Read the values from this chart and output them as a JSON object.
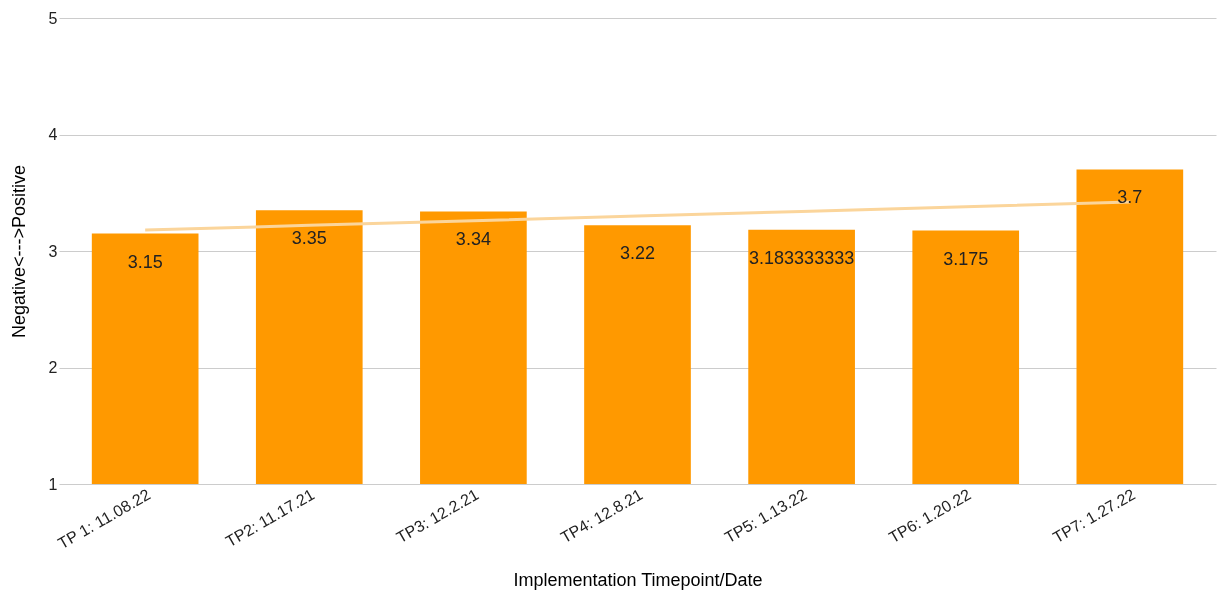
{
  "chart_data": {
    "type": "bar",
    "xlabel": "Implementation Timepoint/Date",
    "ylabel": "Negative<--->Positive",
    "categories": [
      "TP 1: 11.08.22",
      "TP2: 11.17.21",
      "TP3: 12.2.21",
      "TP4: 12.8.21",
      "TP5: 1.13.22",
      "TP6: 1.20.22",
      "TP7: 1.27.22"
    ],
    "series": [
      {
        "color": "#ff9900",
        "values": [
          3.15,
          3.35,
          3.34,
          3.22,
          3.183333333,
          3.175,
          3.7
        ],
        "value_labels": [
          "3.15",
          "3.35",
          "3.34",
          "3.22",
          "3.183333333",
          "3.175",
          "3.7"
        ]
      },
      {
        "type": "line",
        "color": "#fbd59b",
        "values": [
          3.18,
          3.22,
          3.26,
          3.3,
          3.34,
          3.38,
          3.42
        ]
      }
    ],
    "ylim": [
      1,
      5
    ],
    "yticks": [
      1,
      2,
      3,
      4,
      5
    ],
    "grid": "y",
    "legend": false
  }
}
